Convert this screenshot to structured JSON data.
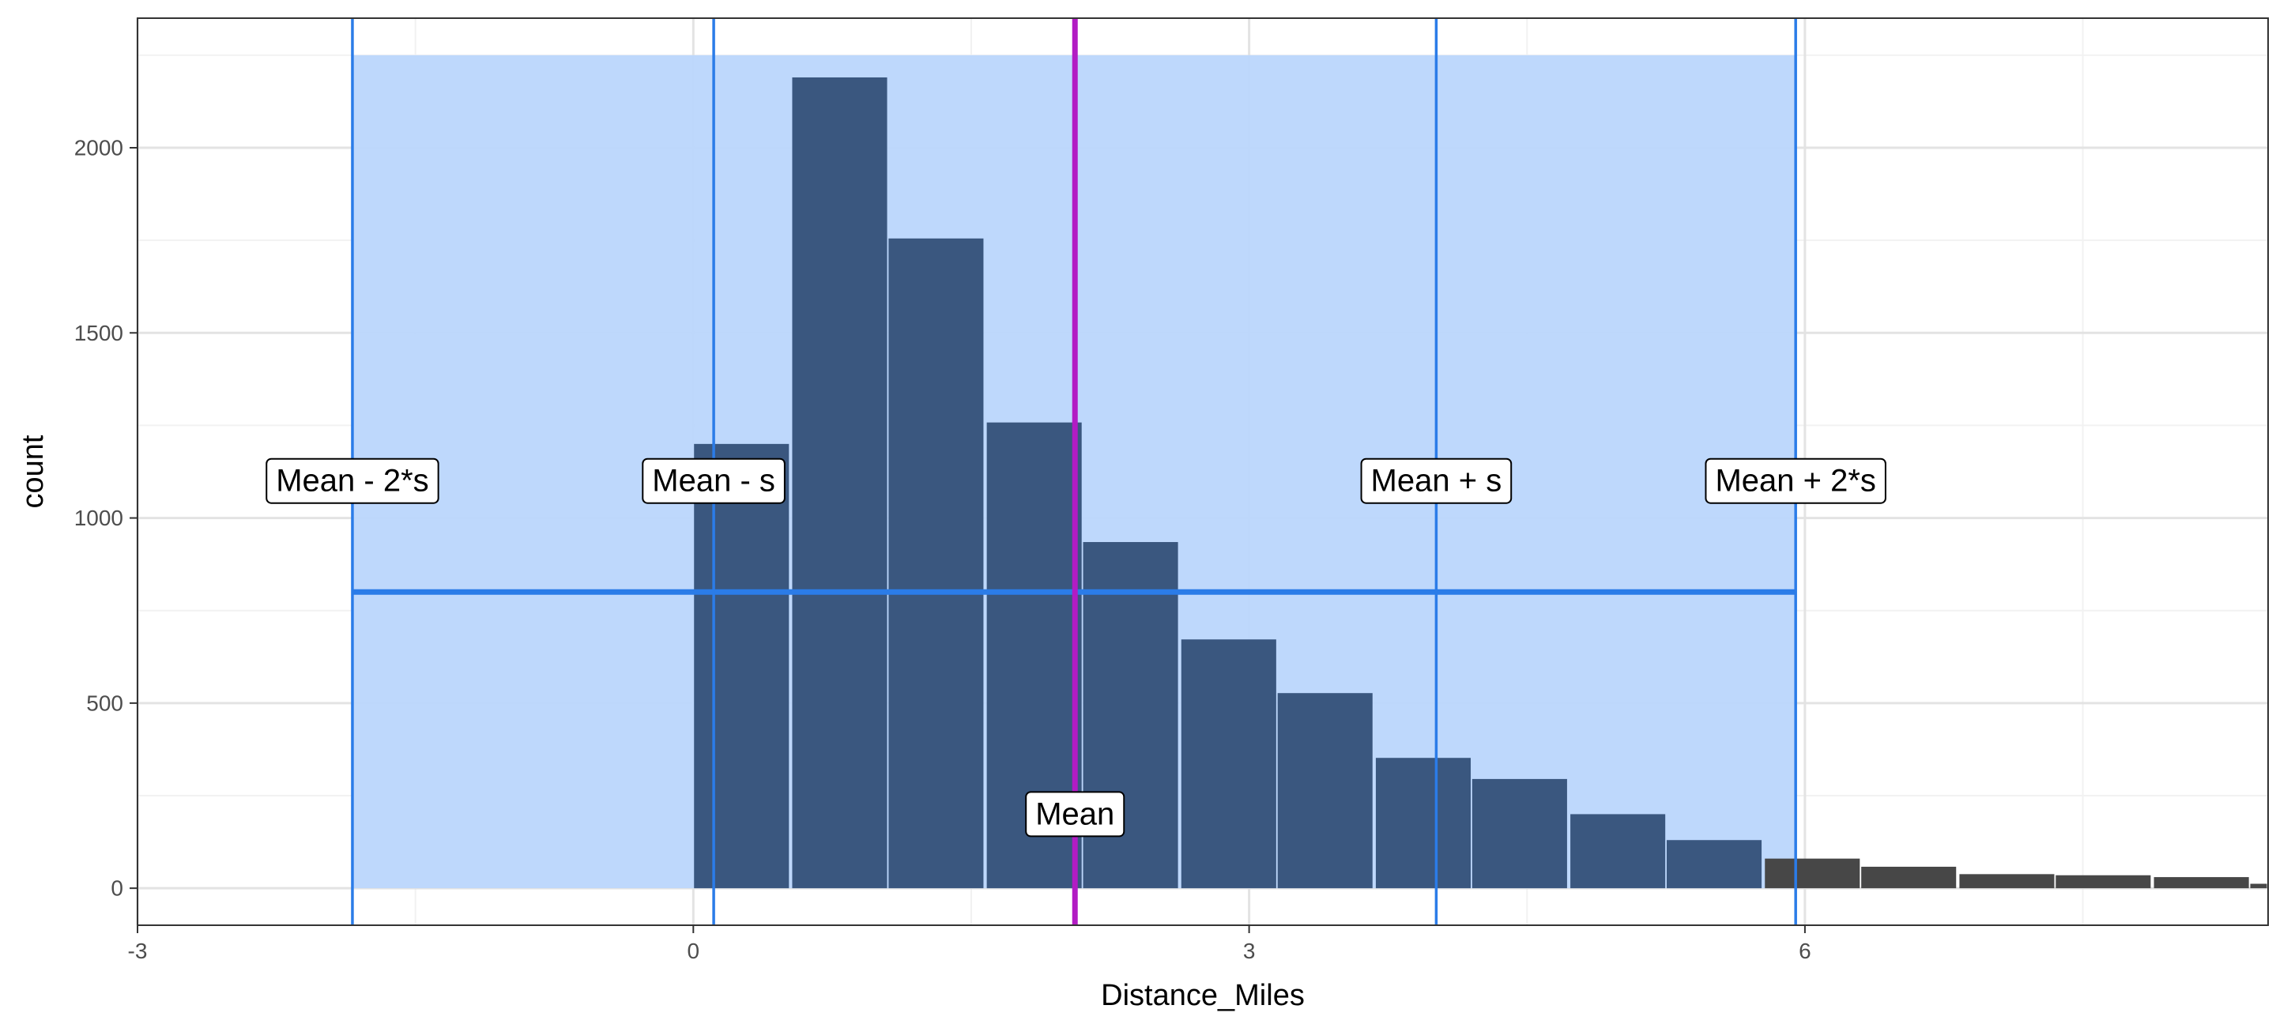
{
  "chart_data": {
    "type": "bar",
    "xlabel": "Distance_Miles",
    "ylabel": "count",
    "xlim": [
      -3,
      8.5
    ],
    "ylim": [
      -100,
      2350
    ],
    "x_ticks": [
      {
        "value": -3,
        "label": "-3"
      },
      {
        "value": 0,
        "label": "0"
      },
      {
        "value": 3,
        "label": "3"
      },
      {
        "value": 6,
        "label": "6"
      }
    ],
    "y_ticks": [
      {
        "value": 0,
        "label": "0"
      },
      {
        "value": 500,
        "label": "500"
      },
      {
        "value": 1000,
        "label": "1000"
      },
      {
        "value": 1500,
        "label": "1500"
      },
      {
        "value": 2000,
        "label": "2000"
      }
    ],
    "grid": true,
    "bin_width": 0.525,
    "bins": [
      {
        "x": 0.26,
        "count": 1200
      },
      {
        "x": 0.79,
        "count": 2190
      },
      {
        "x": 1.31,
        "count": 1755
      },
      {
        "x": 1.84,
        "count": 1258
      },
      {
        "x": 2.36,
        "count": 935
      },
      {
        "x": 2.89,
        "count": 672
      },
      {
        "x": 3.41,
        "count": 527
      },
      {
        "x": 3.94,
        "count": 352
      },
      {
        "x": 4.46,
        "count": 295
      },
      {
        "x": 4.99,
        "count": 200
      },
      {
        "x": 5.51,
        "count": 130
      },
      {
        "x": 6.04,
        "count": 80
      },
      {
        "x": 6.56,
        "count": 58
      },
      {
        "x": 7.09,
        "count": 38
      },
      {
        "x": 7.61,
        "count": 35
      },
      {
        "x": 8.14,
        "count": 30
      },
      {
        "x": 8.66,
        "count": 12
      }
    ],
    "highlight_range": [
      -1.84,
      5.95
    ],
    "highlight_top": 2250,
    "mean": 2.06,
    "sd": 1.95,
    "reference_lines": [
      {
        "x": -1.84,
        "label": "Mean - 2*s"
      },
      {
        "x": 0.11,
        "label": "Mean - s"
      },
      {
        "x": 4.01,
        "label": "Mean + s"
      },
      {
        "x": 5.95,
        "label": "Mean + 2*s"
      }
    ],
    "mean_label": "Mean",
    "interval_bar_y": 800,
    "reference_label_y": 1100,
    "mean_label_y": 200,
    "colors": {
      "bar_inside": "#3a577f",
      "bar_outside": "#474747",
      "highlight": "#bbd6fc",
      "reference_line": "#2b7ce8",
      "mean_line": "#b21cc4",
      "grid_major": "#e3e3e3",
      "grid_minor": "#f2f2f2"
    }
  }
}
